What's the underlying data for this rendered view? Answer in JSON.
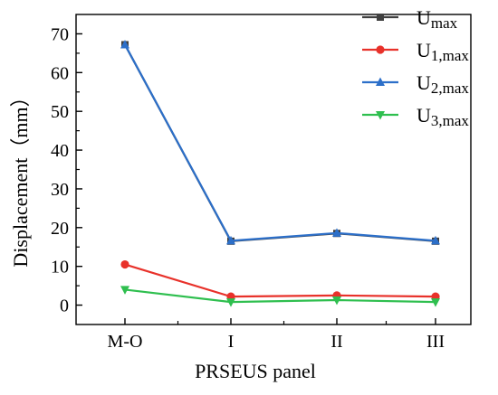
{
  "chart_data": {
    "type": "line",
    "xlabel": "PRSEUS panel",
    "ylabel": "Displacement（mm）",
    "categories": [
      "M-O",
      "I",
      "II",
      "III"
    ],
    "ylim": [
      -5,
      75
    ],
    "yticks": [
      0,
      10,
      20,
      30,
      40,
      50,
      60,
      70
    ],
    "grid": false,
    "legend_position": "top-right",
    "series": [
      {
        "name": "U",
        "sub": "max",
        "color": "#404040",
        "marker": "square",
        "values": [
          67.2,
          16.5,
          18.5,
          16.5
        ]
      },
      {
        "name": "U",
        "sub": "1,max",
        "color": "#e8312a",
        "marker": "circle",
        "values": [
          10.5,
          2.2,
          2.5,
          2.2
        ]
      },
      {
        "name": "U",
        "sub": "2,max",
        "color": "#2c6fc9",
        "marker": "triangle-up",
        "values": [
          67.2,
          16.6,
          18.6,
          16.6
        ]
      },
      {
        "name": "U",
        "sub": "3,max",
        "color": "#2fbf4f",
        "marker": "triangle-down",
        "values": [
          4.0,
          0.8,
          1.3,
          0.8
        ]
      }
    ]
  }
}
